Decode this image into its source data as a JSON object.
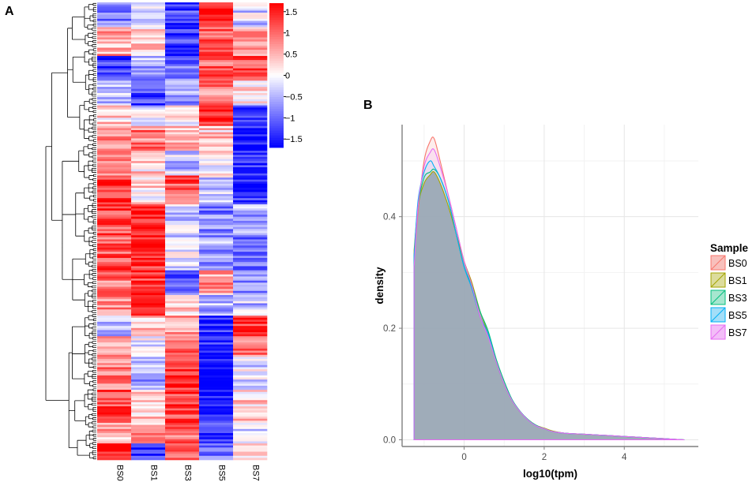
{
  "chart_data": [
    {
      "type": "heatmap",
      "panel_label": "A",
      "columns": [
        "BS0",
        "BS1",
        "BS3",
        "BS5",
        "BS7"
      ],
      "colorbar": {
        "ticks": [
          1.5,
          1,
          0.5,
          0,
          -0.5,
          -1,
          -1.5
        ],
        "tick_labels": [
          "1.5",
          "1",
          "0.5",
          "0",
          "−0.5",
          "−1",
          "−1.5"
        ],
        "range": [
          -1.7,
          1.7
        ],
        "low_color": "#0000ff",
        "mid_color": "#ffffff",
        "high_color": "#ff0000"
      },
      "row_dendrogram": true,
      "blocks": [
        {
          "rows": 12,
          "values": [
            -0.8,
            -0.4,
            -1.3,
            1.7,
            -0.3
          ]
        },
        {
          "rows": 14,
          "values": [
            0.6,
            0.3,
            -1.4,
            1.2,
            0.5
          ]
        },
        {
          "rows": 12,
          "values": [
            -1.2,
            -0.6,
            -1.0,
            1.0,
            1.2
          ]
        },
        {
          "rows": 12,
          "values": [
            -0.5,
            -1.2,
            -0.6,
            0.8,
            0.2
          ]
        },
        {
          "rows": 10,
          "values": [
            0.3,
            -0.2,
            0.1,
            1.5,
            -1.2
          ]
        },
        {
          "rows": 12,
          "values": [
            0.8,
            0.9,
            0.5,
            0.4,
            -1.6
          ]
        },
        {
          "rows": 12,
          "values": [
            0.6,
            0.3,
            -0.4,
            0.1,
            -1.5
          ]
        },
        {
          "rows": 14,
          "values": [
            1.3,
            0.2,
            1.2,
            -0.3,
            -1.4
          ]
        },
        {
          "rows": 16,
          "values": [
            1.2,
            1.5,
            -0.3,
            -0.8,
            -0.6
          ]
        },
        {
          "rows": 16,
          "values": [
            1.1,
            1.4,
            -0.2,
            -0.6,
            -0.9
          ]
        },
        {
          "rows": 12,
          "values": [
            0.9,
            1.3,
            -1.1,
            0.7,
            -0.8
          ]
        },
        {
          "rows": 10,
          "values": [
            0.8,
            1.6,
            0.3,
            -0.5,
            -0.4
          ]
        },
        {
          "rows": 10,
          "values": [
            -0.4,
            0.4,
            0.6,
            -1.4,
            1.4
          ]
        },
        {
          "rows": 10,
          "values": [
            0.7,
            -0.2,
            0.9,
            -1.5,
            0.9
          ]
        },
        {
          "rows": 16,
          "values": [
            0.9,
            -0.6,
            1.4,
            -1.6,
            -0.2
          ]
        },
        {
          "rows": 16,
          "values": [
            1.2,
            0.4,
            1.3,
            -1.6,
            0.3
          ]
        },
        {
          "rows": 10,
          "values": [
            0.5,
            0.6,
            1.0,
            -1.3,
            -0.3
          ]
        },
        {
          "rows": 8,
          "values": [
            1.6,
            -1.2,
            1.1,
            -1.0,
            0.4
          ]
        }
      ]
    },
    {
      "type": "area",
      "panel_label": "B",
      "xlabel": "log10(tpm)",
      "ylabel": "density",
      "xlim": [
        -1.55,
        5.85
      ],
      "ylim": [
        -0.012,
        0.565
      ],
      "x_ticks": [
        0,
        2,
        4
      ],
      "x_tick_labels": [
        "0",
        "2",
        "4"
      ],
      "y_ticks": [
        0.0,
        0.2,
        0.4
      ],
      "y_tick_labels": [
        "0.0",
        "0.2",
        "0.4"
      ],
      "legend": {
        "title": "Sample",
        "position": "right"
      },
      "fill_color": "#8c9cab",
      "x": [
        -1.25,
        -1.15,
        -1.0,
        -0.85,
        -0.75,
        -0.6,
        -0.4,
        -0.2,
        0.0,
        0.2,
        0.4,
        0.6,
        0.8,
        1.0,
        1.2,
        1.4,
        1.6,
        1.8,
        2.0,
        2.2,
        2.5,
        3.0,
        3.5,
        4.0,
        4.5,
        5.0,
        5.5
      ],
      "series": [
        {
          "name": "BS0",
          "color": "#f8766d",
          "fill": "#f8c0bc",
          "values": [
            0.32,
            0.41,
            0.5,
            0.535,
            0.54,
            0.5,
            0.44,
            0.38,
            0.32,
            0.28,
            0.22,
            0.19,
            0.14,
            0.1,
            0.07,
            0.05,
            0.035,
            0.025,
            0.02,
            0.015,
            0.012,
            0.01,
            0.008,
            0.006,
            0.004,
            0.002,
            0.0
          ]
        },
        {
          "name": "BS1",
          "color": "#a3a500",
          "fill": "#dcdc9c",
          "values": [
            0.34,
            0.42,
            0.46,
            0.475,
            0.48,
            0.46,
            0.42,
            0.37,
            0.32,
            0.28,
            0.23,
            0.19,
            0.14,
            0.1,
            0.07,
            0.05,
            0.036,
            0.026,
            0.021,
            0.016,
            0.012,
            0.01,
            0.008,
            0.006,
            0.004,
            0.002,
            0.0
          ]
        },
        {
          "name": "BS3",
          "color": "#00bf7d",
          "fill": "#a6e6cf",
          "values": [
            0.33,
            0.42,
            0.47,
            0.48,
            0.485,
            0.47,
            0.43,
            0.37,
            0.31,
            0.275,
            0.23,
            0.195,
            0.145,
            0.105,
            0.072,
            0.051,
            0.036,
            0.026,
            0.02,
            0.015,
            0.012,
            0.01,
            0.008,
            0.006,
            0.004,
            0.002,
            0.0
          ]
        },
        {
          "name": "BS5",
          "color": "#00b0f6",
          "fill": "#a3def8",
          "values": [
            0.33,
            0.43,
            0.48,
            0.5,
            0.49,
            0.47,
            0.43,
            0.37,
            0.31,
            0.27,
            0.22,
            0.19,
            0.14,
            0.1,
            0.07,
            0.05,
            0.035,
            0.025,
            0.02,
            0.015,
            0.012,
            0.01,
            0.008,
            0.006,
            0.004,
            0.002,
            0.0
          ]
        },
        {
          "name": "BS7",
          "color": "#e76bf3",
          "fill": "#f3bdf8",
          "values": [
            0.31,
            0.42,
            0.49,
            0.515,
            0.52,
            0.49,
            0.44,
            0.38,
            0.32,
            0.275,
            0.22,
            0.185,
            0.14,
            0.1,
            0.07,
            0.05,
            0.035,
            0.025,
            0.02,
            0.015,
            0.012,
            0.01,
            0.008,
            0.006,
            0.004,
            0.002,
            0.0
          ]
        }
      ]
    }
  ]
}
